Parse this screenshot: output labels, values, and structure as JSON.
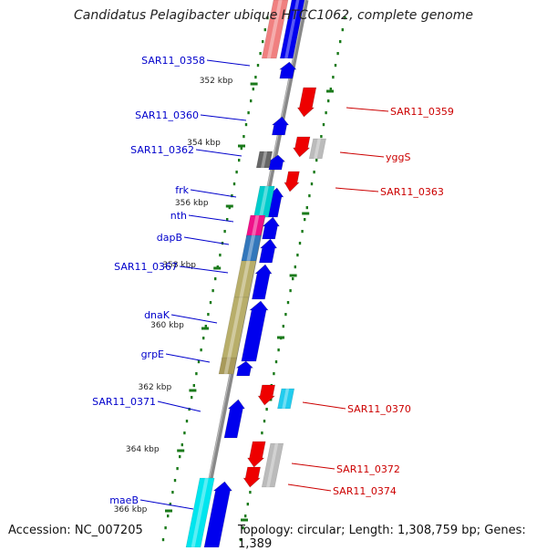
{
  "title": "Candidatus Pelagibacter ubique HTCC1062, complete genome",
  "footer": {
    "accession": "Accession: NC_007205",
    "topology": "Topology: circular; Length: 1,308,759 bp; Genes: 1,389"
  },
  "colors": {
    "forward_label": "#0000cc",
    "reverse_label": "#cc0000",
    "backbone": "#888888",
    "ticks": "#1a7a1a",
    "forward_arrow": "#0000ee",
    "reverse_arrow": "#ee0000"
  },
  "kbp_labels": [
    "352 kbp",
    "354 kbp",
    "356 kbp",
    "358 kbp",
    "360 kbp",
    "362 kbp",
    "364 kbp",
    "366 kbp"
  ],
  "genes_left": [
    "SAR11_0358",
    "SAR11_0360",
    "SAR11_0362",
    "frk",
    "nth",
    "dapB",
    "SAR11_0367",
    "dnaK",
    "grpE",
    "SAR11_0371",
    "maeB"
  ],
  "genes_right": [
    "SAR11_0359",
    "yggS",
    "SAR11_0363",
    "SAR11_0370",
    "SAR11_0372",
    "SAR11_0374"
  ]
}
